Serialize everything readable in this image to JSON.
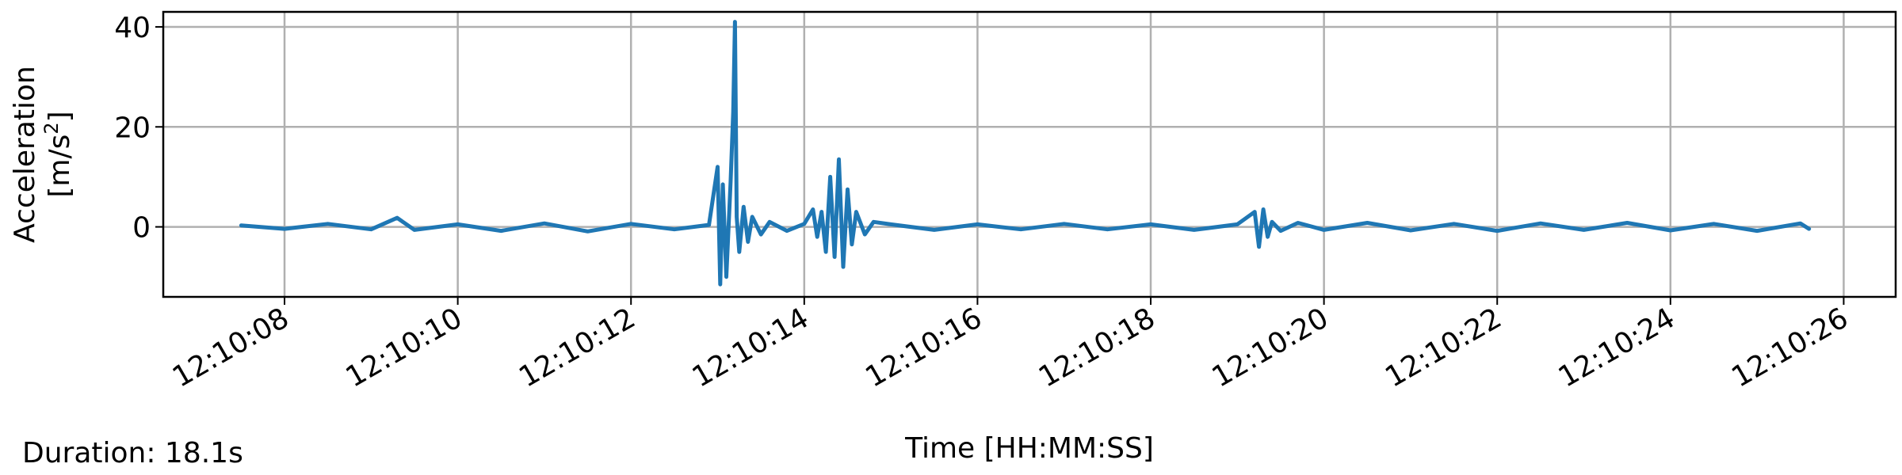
{
  "chart_data": {
    "type": "line",
    "title": "",
    "xlabel": "Time [HH:MM:SS]",
    "ylabel_line1": "Acceleration",
    "ylabel_line2_base": "[m/s",
    "ylabel_line2_sup": "2",
    "ylabel_line2_end": "]",
    "xlim": [
      "12:10:06.6",
      "12:10:26.6"
    ],
    "ylim": [
      -14,
      43
    ],
    "xticks": [
      "12:10:08",
      "12:10:10",
      "12:10:12",
      "12:10:14",
      "12:10:16",
      "12:10:18",
      "12:10:20",
      "12:10:22",
      "12:10:24",
      "12:10:26"
    ],
    "yticks": [
      "0",
      "20",
      "40"
    ],
    "grid": true,
    "series": [
      {
        "color": "#1f77b4",
        "x_unit": "seconds after 12:10:00",
        "x": [
          7.5,
          8.0,
          8.5,
          9.0,
          9.3,
          9.5,
          10.0,
          10.5,
          11.0,
          11.5,
          12.0,
          12.5,
          12.9,
          13.0,
          13.03,
          13.06,
          13.1,
          13.15,
          13.18,
          13.2,
          13.22,
          13.25,
          13.3,
          13.35,
          13.4,
          13.5,
          13.6,
          13.8,
          14.0,
          14.1,
          14.15,
          14.2,
          14.25,
          14.3,
          14.35,
          14.4,
          14.45,
          14.5,
          14.55,
          14.6,
          14.7,
          14.8,
          15.0,
          15.5,
          16.0,
          16.5,
          17.0,
          17.5,
          18.0,
          18.5,
          19.0,
          19.2,
          19.25,
          19.3,
          19.35,
          19.4,
          19.5,
          19.7,
          20.0,
          20.5,
          21.0,
          21.5,
          22.0,
          22.5,
          23.0,
          23.5,
          24.0,
          24.5,
          25.0,
          25.5,
          25.6
        ],
        "y": [
          0.3,
          -0.4,
          0.6,
          -0.5,
          1.8,
          -0.6,
          0.5,
          -0.8,
          0.7,
          -0.9,
          0.6,
          -0.5,
          0.4,
          12.0,
          -11.5,
          8.5,
          -10.0,
          9.0,
          23.0,
          41.0,
          2.0,
          -5.0,
          4.0,
          -3.0,
          2.0,
          -1.5,
          1.0,
          -0.8,
          0.6,
          3.5,
          -2.0,
          3.0,
          -5.0,
          10.0,
          -6.0,
          13.5,
          -8.0,
          7.5,
          -3.5,
          3.0,
          -1.5,
          1.0,
          0.5,
          -0.6,
          0.5,
          -0.5,
          0.6,
          -0.5,
          0.5,
          -0.6,
          0.5,
          3.0,
          -4.0,
          3.5,
          -2.0,
          1.0,
          -0.8,
          0.8,
          -0.6,
          0.8,
          -0.7,
          0.6,
          -0.8,
          0.7,
          -0.6,
          0.8,
          -0.7,
          0.6,
          -0.8,
          0.7,
          -0.4
        ]
      }
    ]
  },
  "footer": {
    "duration_text": "Duration: 18.1s"
  }
}
